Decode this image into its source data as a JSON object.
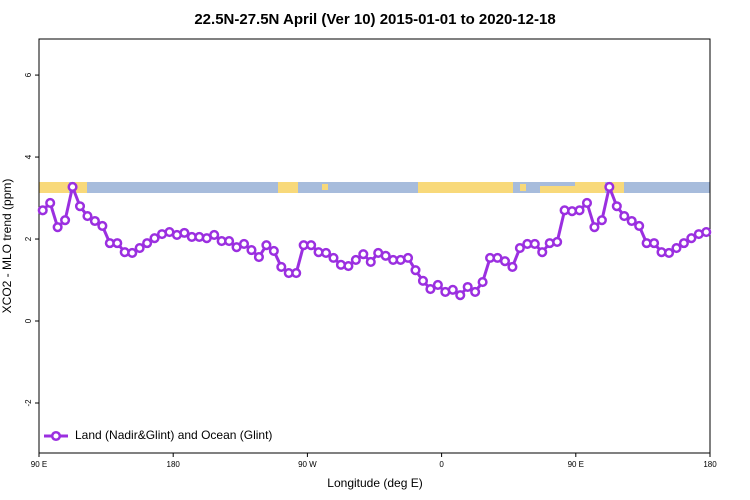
{
  "chart_data": {
    "type": "line",
    "title": "22.5N-27.5N April (Ver 10)   2015-01-01 to 2020-12-18",
    "x_label": "Longitude (deg E)",
    "y_label": "XCO2 - MLO trend (ppm)",
    "xlim": [
      90,
      540
    ],
    "ylim": [
      -3.22,
      6.88
    ],
    "xticks": [
      {
        "value": 90,
        "label": "90 E"
      },
      180,
      {
        "value": 270,
        "label": "90 W"
      },
      {
        "value": 360,
        "label": "0"
      },
      {
        "value": 450,
        "label": "90 E"
      },
      {
        "value": 540,
        "label": "180"
      }
    ],
    "yticks": [
      -2,
      0,
      2,
      4,
      6
    ],
    "legend": "bottom-left",
    "x": [
      92.5,
      97.5,
      102.5,
      107.5,
      112.5,
      117.5,
      122.5,
      127.5,
      132.5,
      137.5,
      142.5,
      147.5,
      152.5,
      157.5,
      162.5,
      167.5,
      172.5,
      177.5,
      182.5,
      187.5,
      192.5,
      197.5,
      202.5,
      207.5,
      212.5,
      217.5,
      222.5,
      227.5,
      232.5,
      237.5,
      242.5,
      247.5,
      252.5,
      257.5,
      262.5,
      267.5,
      272.5,
      277.5,
      282.5,
      287.5,
      292.5,
      297.5,
      302.5,
      307.5,
      312.5,
      317.5,
      322.5,
      327.5,
      332.5,
      337.5,
      342.5,
      347.5,
      352.5,
      357.5,
      362.5,
      367.5,
      372.5,
      377.5,
      382.5,
      387.5,
      392.5,
      397.5,
      402.5,
      407.5,
      412.5,
      417.5,
      422.5,
      427.5,
      432.5,
      437.5,
      442.5,
      447.5,
      452.5,
      457.5,
      462.5,
      467.5,
      472.5,
      477.5,
      482.5,
      487.5,
      492.5,
      497.5,
      502.5,
      507.5,
      512.5,
      517.5,
      522.5,
      527.5,
      532.5,
      537.5
    ],
    "series": [
      {
        "name": "Land (Nadir&Glint) and Ocean (Glint)",
        "color": "#9b2fe0",
        "values": [
          2.7,
          2.88,
          2.29,
          2.46,
          3.27,
          2.8,
          2.56,
          2.44,
          2.32,
          1.9,
          1.9,
          1.68,
          1.66,
          1.78,
          1.9,
          2.02,
          2.12,
          2.17,
          2.1,
          2.15,
          2.05,
          2.05,
          2.02,
          2.1,
          1.95,
          1.95,
          1.8,
          1.88,
          1.73,
          1.56,
          1.85,
          1.71,
          1.32,
          1.17,
          1.17,
          1.85,
          1.85,
          1.68,
          1.66,
          1.54,
          1.37,
          1.34,
          1.49,
          1.63,
          1.44,
          1.66,
          1.59,
          1.49,
          1.49,
          1.54,
          1.24,
          0.98,
          0.78,
          0.88,
          0.71,
          0.76,
          0.63,
          0.83,
          0.71,
          0.95,
          1.54,
          1.54,
          1.46,
          1.32,
          1.78,
          1.88,
          1.88,
          1.68,
          1.9,
          1.93,
          2.7,
          2.68,
          2.7,
          2.88,
          2.29,
          2.46,
          3.27,
          2.8,
          2.56,
          2.44,
          2.32,
          1.9,
          1.9,
          1.68,
          1.66,
          1.78,
          1.9,
          2.02,
          2.12,
          2.17
        ]
      }
    ]
  }
}
